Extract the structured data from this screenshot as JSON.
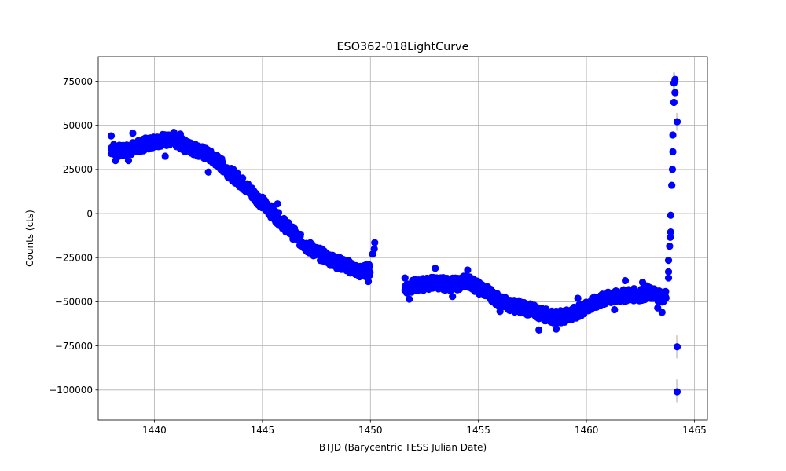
{
  "chart_data": {
    "type": "scatter",
    "title": "ESO362-018LightCurve",
    "xlabel": "BTJD (Barycentric TESS Julian Date)",
    "ylabel": "Counts (cts)",
    "xlim": [
      1437.4,
      1465.6
    ],
    "ylim": [
      -117000,
      89000
    ],
    "xticks": [
      1440,
      1445,
      1450,
      1455,
      1460,
      1465
    ],
    "xtick_labels": [
      "1440",
      "1445",
      "1450",
      "1455",
      "1460",
      "1465"
    ],
    "yticks": [
      75000,
      50000,
      25000,
      0,
      -25000,
      -50000,
      -75000,
      -100000
    ],
    "ytick_labels": [
      "75000",
      "50000",
      "25000",
      "0",
      "−25000",
      "−50000",
      "−75000",
      "−100000"
    ],
    "grid": true,
    "marker_color": "#0000ff",
    "errorbar_color": "#d3d3d3",
    "series": [
      {
        "style": "scatter-with-errorbars",
        "trend": [
          [
            1438.0,
            37000
          ],
          [
            1438.5,
            35000
          ],
          [
            1439.0,
            37000
          ],
          [
            1439.5,
            39000
          ],
          [
            1440.0,
            41000
          ],
          [
            1440.5,
            42000
          ],
          [
            1441.0,
            41000
          ],
          [
            1441.5,
            38000
          ],
          [
            1442.0,
            36000
          ],
          [
            1442.5,
            33000
          ],
          [
            1443.0,
            29000
          ],
          [
            1443.5,
            23000
          ],
          [
            1444.0,
            18000
          ],
          [
            1444.5,
            12000
          ],
          [
            1445.0,
            6000
          ],
          [
            1445.5,
            0
          ],
          [
            1446.0,
            -6000
          ],
          [
            1446.5,
            -12000
          ],
          [
            1447.0,
            -18000
          ],
          [
            1447.5,
            -22000
          ],
          [
            1448.0,
            -25000
          ],
          [
            1448.5,
            -28000
          ],
          [
            1449.0,
            -30000
          ],
          [
            1449.5,
            -33000
          ],
          [
            1450.0,
            -32000
          ],
          [
            1451.6,
            -42000
          ],
          [
            1452.0,
            -41000
          ],
          [
            1452.5,
            -40000
          ],
          [
            1453.0,
            -39000
          ],
          [
            1453.5,
            -40000
          ],
          [
            1454.0,
            -40000
          ],
          [
            1454.5,
            -38000
          ],
          [
            1455.0,
            -42000
          ],
          [
            1455.5,
            -45000
          ],
          [
            1456.0,
            -50000
          ],
          [
            1456.5,
            -52000
          ],
          [
            1457.0,
            -53000
          ],
          [
            1457.5,
            -55000
          ],
          [
            1458.0,
            -57000
          ],
          [
            1458.5,
            -59000
          ],
          [
            1459.0,
            -58000
          ],
          [
            1459.5,
            -56000
          ],
          [
            1460.0,
            -53000
          ],
          [
            1460.5,
            -50000
          ],
          [
            1461.0,
            -48000
          ],
          [
            1461.5,
            -47000
          ],
          [
            1462.0,
            -46000
          ],
          [
            1462.5,
            -46000
          ],
          [
            1463.0,
            -45000
          ],
          [
            1463.5,
            -47000
          ],
          [
            1463.7,
            -46000
          ]
        ],
        "points": [
          [
            1438.0,
            44000
          ],
          [
            1438.0,
            34000
          ],
          [
            1438.2,
            30000
          ],
          [
            1439.0,
            45500
          ],
          [
            1438.8,
            30000
          ],
          [
            1440.5,
            32500
          ],
          [
            1440.9,
            46000
          ],
          [
            1441.2,
            45000
          ],
          [
            1442.5,
            23500
          ],
          [
            1445.7,
            5500
          ],
          [
            1449.9,
            -38500
          ],
          [
            1450.1,
            -23000
          ],
          [
            1450.2,
            -16500
          ],
          [
            1450.18,
            -20000
          ],
          [
            1451.6,
            -36500
          ],
          [
            1451.8,
            -48500
          ],
          [
            1453.0,
            -31000
          ],
          [
            1453.8,
            -47000
          ],
          [
            1454.5,
            -32000
          ],
          [
            1456.0,
            -55500
          ],
          [
            1457.8,
            -66000
          ],
          [
            1458.6,
            -65500
          ],
          [
            1459.0,
            -61500
          ],
          [
            1459.6,
            -48000
          ],
          [
            1461.2,
            -45000
          ],
          [
            1461.3,
            -54500
          ],
          [
            1461.8,
            -38000
          ],
          [
            1462.6,
            -39000
          ],
          [
            1462.8,
            -41000
          ],
          [
            1463.3,
            -53500
          ],
          [
            1463.5,
            -56000
          ],
          [
            1463.8,
            -33000
          ],
          [
            1463.8,
            -36500
          ],
          [
            1463.8,
            -26500
          ],
          [
            1463.85,
            -18500
          ],
          [
            1463.88,
            -13500
          ],
          [
            1463.9,
            -10500
          ],
          [
            1463.9,
            -1000
          ],
          [
            1463.95,
            16000
          ],
          [
            1463.98,
            25000
          ],
          [
            1464.0,
            35000
          ],
          [
            1464.0,
            44500
          ],
          [
            1464.05,
            63000
          ],
          [
            1464.05,
            74000
          ],
          [
            1464.1,
            68500
          ],
          [
            1464.1,
            76000
          ],
          [
            1464.2,
            52000
          ],
          [
            1464.2,
            -75500
          ],
          [
            1464.2,
            -101000
          ]
        ],
        "errorbars": [
          [
            1464.05,
            68000,
            80000
          ],
          [
            1464.2,
            47000,
            57000
          ],
          [
            1464.2,
            -82000,
            -69000
          ],
          [
            1464.2,
            -107000,
            -94000
          ]
        ]
      }
    ]
  }
}
